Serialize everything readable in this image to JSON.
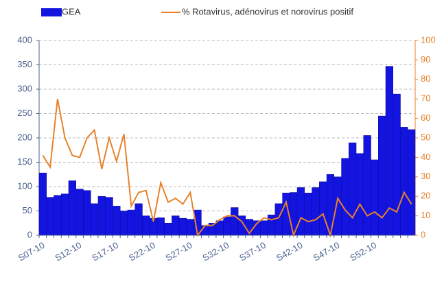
{
  "chart_data": {
    "type": "bar",
    "legend": "top",
    "grid": true,
    "categories": [
      "S07-10",
      null,
      null,
      null,
      null,
      "S12-10",
      null,
      null,
      null,
      null,
      "S17-10",
      null,
      null,
      null,
      null,
      "S22-10",
      null,
      null,
      null,
      null,
      "S27-10",
      null,
      null,
      null,
      null,
      "S32-10",
      null,
      null,
      null,
      null,
      "S37-10",
      null,
      null,
      null,
      null,
      "S42-10",
      null,
      null,
      null,
      null,
      "S47-10",
      null,
      null,
      null,
      null,
      "S52-10",
      null,
      null,
      null,
      null,
      null
    ],
    "series": [
      {
        "name": "GEA",
        "type": "bar",
        "color": "#1414e0",
        "axis": "y",
        "values": [
          128,
          78,
          82,
          85,
          112,
          95,
          92,
          65,
          80,
          78,
          60,
          50,
          52,
          65,
          40,
          35,
          36,
          25,
          40,
          35,
          33,
          52,
          20,
          25,
          30,
          38,
          57,
          40,
          33,
          30,
          30,
          42,
          65,
          87,
          88,
          98,
          87,
          98,
          110,
          125,
          120,
          158,
          190,
          168,
          205,
          155,
          245,
          347,
          290,
          222,
          217
        ]
      },
      {
        "name": "% Rotavirus, adénovirus et norovirus positif",
        "type": "line",
        "color": "#e8822a",
        "axis": "y2",
        "values": [
          41,
          35,
          70,
          50,
          41,
          40,
          50,
          54,
          34,
          50,
          38,
          52,
          15,
          22,
          23,
          7,
          27,
          17,
          19,
          16,
          22,
          0,
          5,
          5,
          8,
          10,
          10,
          7,
          1,
          6,
          9,
          8,
          9,
          17,
          0,
          9,
          7,
          8,
          11,
          0,
          19,
          13,
          9,
          16,
          10,
          12,
          9,
          14,
          12,
          22,
          16
        ]
      }
    ],
    "ylim": [
      0,
      400
    ],
    "yticks": [
      0,
      50,
      100,
      150,
      200,
      250,
      300,
      350,
      400
    ],
    "y2lim": [
      0,
      100
    ],
    "y2ticks": [
      0,
      10,
      20,
      30,
      40,
      50,
      60,
      70,
      80,
      90,
      100
    ]
  }
}
